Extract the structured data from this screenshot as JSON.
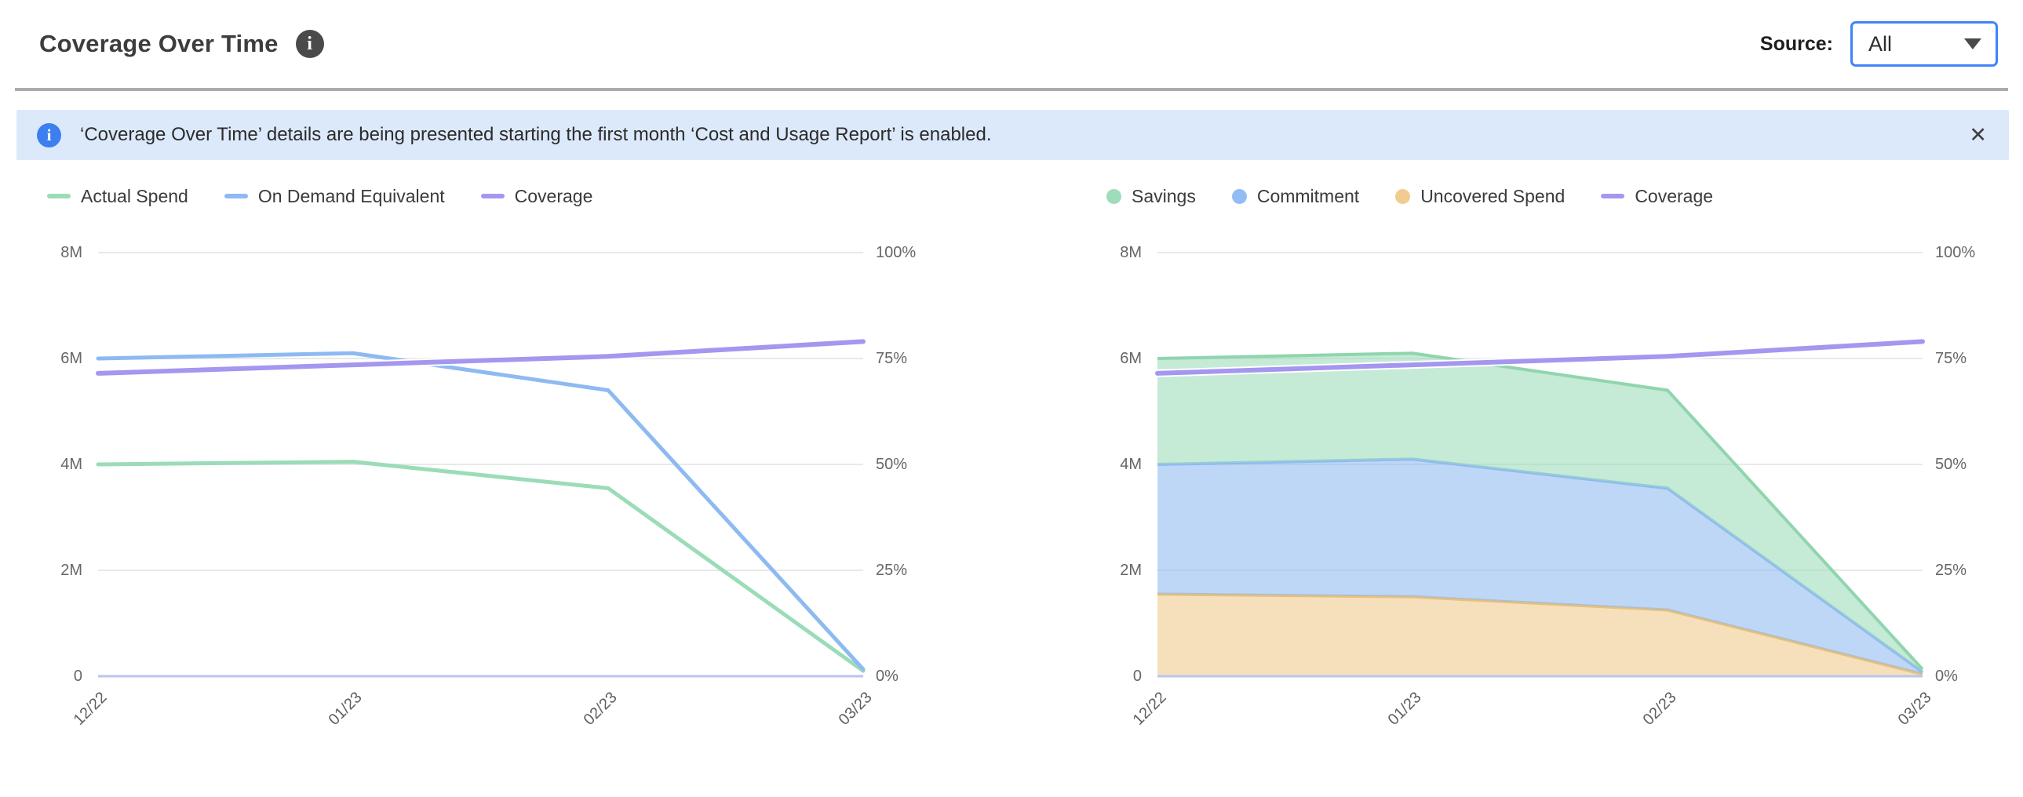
{
  "header": {
    "title": "Coverage Over Time",
    "info_icon_glyph": "i",
    "source_label": "Source:",
    "source_value": "All"
  },
  "banner": {
    "info_icon_glyph": "i",
    "text": "‘Coverage Over Time’ details are being presented starting the first month ‘Cost and Usage Report’ is enabled.",
    "close_icon": "✕",
    "background": "#dce9fb",
    "icon_color": "#3d7ff0"
  },
  "colors": {
    "accent_blue": "#3f83f8",
    "gridline": "#e9e9e9",
    "baseline": "#b9c6ee",
    "tick_text": "#666666"
  },
  "chart_data": [
    {
      "type": "line",
      "title": "Spend vs Coverage (lines)",
      "categories": [
        "12/22",
        "01/23",
        "02/23",
        "03/23"
      ],
      "series": [
        {
          "name": "Actual Spend",
          "marker": "line",
          "axis": "left",
          "color": "#9bdcb8",
          "values": [
            4.0,
            4.05,
            3.55,
            0.1
          ]
        },
        {
          "name": "On Demand Equivalent",
          "marker": "line",
          "axis": "left",
          "color": "#8ebaf2",
          "values": [
            6.0,
            6.1,
            5.4,
            0.13
          ]
        },
        {
          "name": "Coverage",
          "marker": "line",
          "axis": "right",
          "color": "#a596f0",
          "halo": "#ffffff",
          "values": [
            71.5,
            73.5,
            75.5,
            79
          ]
        }
      ],
      "y_left": {
        "ticks": [
          "8M",
          "6M",
          "4M",
          "2M",
          "0"
        ],
        "max": 8,
        "unit": "M"
      },
      "y_right": {
        "ticks": [
          "100%",
          "75%",
          "50%",
          "25%",
          "0%"
        ],
        "max": 100,
        "unit": "%"
      },
      "grid": true,
      "legend_position": "top"
    },
    {
      "type": "area",
      "stacked": true,
      "title": "Savings / Commitment / Uncovered Spend (stacked) with Coverage",
      "categories": [
        "12/22",
        "01/23",
        "02/23",
        "03/23"
      ],
      "series": [
        {
          "name": "Savings",
          "marker": "dot",
          "axis": "left",
          "stack": 2,
          "color": "#8fd5ad",
          "fill": "#9fdcba",
          "values": [
            2.0,
            2.0,
            1.85,
            0.05
          ]
        },
        {
          "name": "Commitment",
          "marker": "dot",
          "axis": "left",
          "stack": 1,
          "color": "#8ebaf2",
          "fill": "#92bdf2",
          "values": [
            2.45,
            2.6,
            2.3,
            0.04
          ]
        },
        {
          "name": "Uncovered Spend",
          "marker": "dot",
          "axis": "left",
          "stack": 0,
          "color": "#eac179",
          "fill": "#f0cc8e",
          "values": [
            1.55,
            1.5,
            1.25,
            0.04
          ]
        },
        {
          "name": "Coverage",
          "marker": "line",
          "axis": "right",
          "color": "#a596f0",
          "halo": "#ffffff",
          "values": [
            71.5,
            73.5,
            75.5,
            79
          ]
        }
      ],
      "y_left": {
        "ticks": [
          "8M",
          "6M",
          "4M",
          "2M",
          "0"
        ],
        "max": 8,
        "unit": "M"
      },
      "y_right": {
        "ticks": [
          "100%",
          "75%",
          "50%",
          "25%",
          "0%"
        ],
        "max": 100,
        "unit": "%"
      },
      "grid": true,
      "legend_position": "top"
    }
  ]
}
